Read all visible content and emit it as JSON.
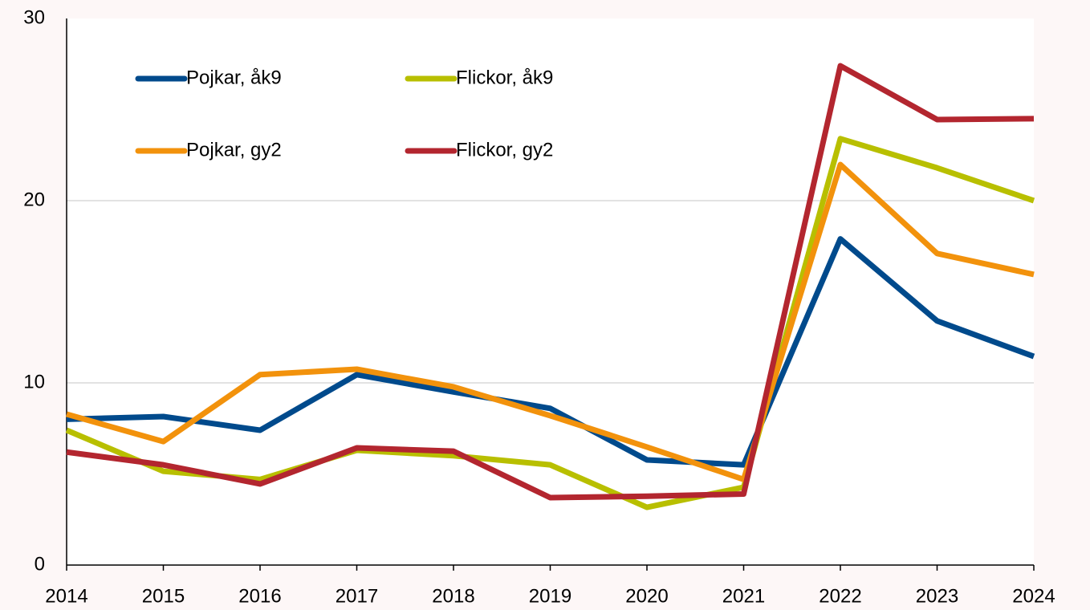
{
  "chart_data": {
    "type": "line",
    "x": [
      2014,
      2015,
      2016,
      2017,
      2018,
      2019,
      2020,
      2021,
      2022,
      2023,
      2024
    ],
    "xlim": [
      2014,
      2024
    ],
    "xticks": [
      2014,
      2015,
      2016,
      2017,
      2018,
      2019,
      2020,
      2021,
      2022,
      2023,
      2024
    ],
    "ylim": [
      0,
      30
    ],
    "yticks": [
      0,
      10,
      20,
      30
    ],
    "grid": true,
    "legend": "upper left",
    "series": [
      {
        "name": "Pojkar, åk9",
        "color": "#004a8c",
        "values": [
          8.0,
          8.15,
          7.4,
          10.45,
          9.5,
          8.6,
          5.77,
          5.5,
          17.9,
          13.4,
          11.45
        ]
      },
      {
        "name": "Flickor, åk9",
        "color": "#b8bf00",
        "values": [
          7.4,
          5.15,
          4.7,
          6.3,
          6.0,
          5.5,
          3.17,
          4.27,
          23.4,
          21.8,
          20.0
        ]
      },
      {
        "name": "Pojkar, gy2",
        "color": "#f2920c",
        "values": [
          8.28,
          6.78,
          10.45,
          10.75,
          9.78,
          8.2,
          6.48,
          4.7,
          21.98,
          17.1,
          15.95
        ]
      },
      {
        "name": "Flickor, gy2",
        "color": "#b3262f",
        "values": [
          6.2,
          5.5,
          4.45,
          6.43,
          6.25,
          3.7,
          3.78,
          3.9,
          27.4,
          24.45,
          24.5
        ]
      }
    ]
  }
}
